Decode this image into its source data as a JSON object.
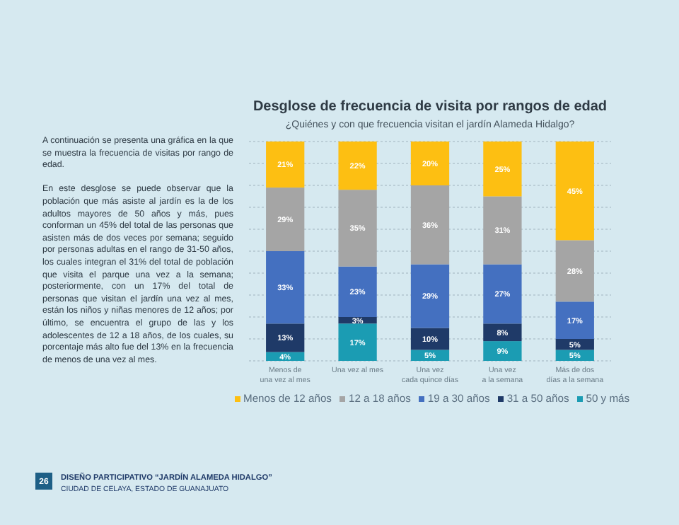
{
  "chart_data": {
    "type": "bar",
    "stacked": true,
    "title": "Desglose de frecuencia de visita por rangos de edad",
    "subtitle": "¿Quiénes y con que frecuencia visitan el jardín Alameda Hidalgo?",
    "categories": [
      "Menos de\nuna vez al mes",
      "Una vez al mes",
      "Una vez\ncada quince días",
      "Una vez\na la semana",
      "Más de dos\ndías a la semana"
    ],
    "series": [
      {
        "name": "50 y más",
        "color": "#1b9cb3",
        "values": [
          4,
          17,
          5,
          9,
          5
        ],
        "value_labels": [
          "4%",
          "17%",
          "5%",
          "9%",
          "5%"
        ]
      },
      {
        "name": "31 a 50 años",
        "color": "#1f3a68",
        "values": [
          13,
          3,
          10,
          8,
          5
        ],
        "value_labels": [
          "13%",
          "3%",
          "10%",
          "8%",
          "5%"
        ]
      },
      {
        "name": "19 a 30 años",
        "color": "#4470c0",
        "values": [
          33,
          23,
          29,
          27,
          17
        ],
        "value_labels": [
          "33%",
          "23%",
          "29%",
          "27%",
          "17%"
        ]
      },
      {
        "name": "12 a 18 años",
        "color": "#a5a5a5",
        "values": [
          29,
          35,
          36,
          31,
          28
        ],
        "value_labels": [
          "29%",
          "35%",
          "36%",
          "31%",
          "28%"
        ]
      },
      {
        "name": "Menos de 12 años",
        "color": "#fdbf12",
        "values": [
          21,
          22,
          20,
          25,
          45
        ],
        "value_labels": [
          "21%",
          "22%",
          "20%",
          "25%",
          "45%"
        ]
      }
    ],
    "ylim": [
      0,
      100
    ],
    "yticks": [
      {
        "value": 0,
        "label": null
      },
      {
        "value": 10,
        "label": null
      },
      {
        "value": 20,
        "label": null
      },
      {
        "value": 30,
        "label": null
      },
      {
        "value": 40,
        "label": null
      },
      {
        "value": 50,
        "label": null
      },
      {
        "value": 60,
        "label": null
      },
      {
        "value": 70,
        "label": null
      },
      {
        "value": 80,
        "label": null
      },
      {
        "value": 90,
        "label": null
      },
      {
        "value": 100,
        "label": null
      }
    ],
    "tick_labels": "x",
    "grid": "y",
    "legend": "bottom",
    "annotations": [
      "A continuación se presenta una gráfica en la que se muestra la frecuencia de visitas por rango de edad.",
      "En este desglose se puede observar que la población que más asiste al jardín es la de los adultos mayores de 50 años y más, pues conforman un 45% del total de las personas que asisten más de dos veces por semana; seguido por personas adultas en el rango de 31-50 años, los cuales integran el 31% del total de población que visita el parque una vez a la semana; posteriormente, con un 17% del total de personas que visitan el jardín una vez al mes, están los niños y niñas menores de 12 años; por último, se encuentra el grupo de las y los adolescentes de 12 a 18 años, de los cuales, su porcentaje más alto fue del 13% en la frecuencia de menos de una vez al mes.",
      "26",
      "DISEÑO PARTICIPATIVO “JARDÍN ALAMEDA HIDALGO”",
      "CIUDAD DE CELAYA, ESTADO DE GUANAJUATO"
    ]
  }
}
